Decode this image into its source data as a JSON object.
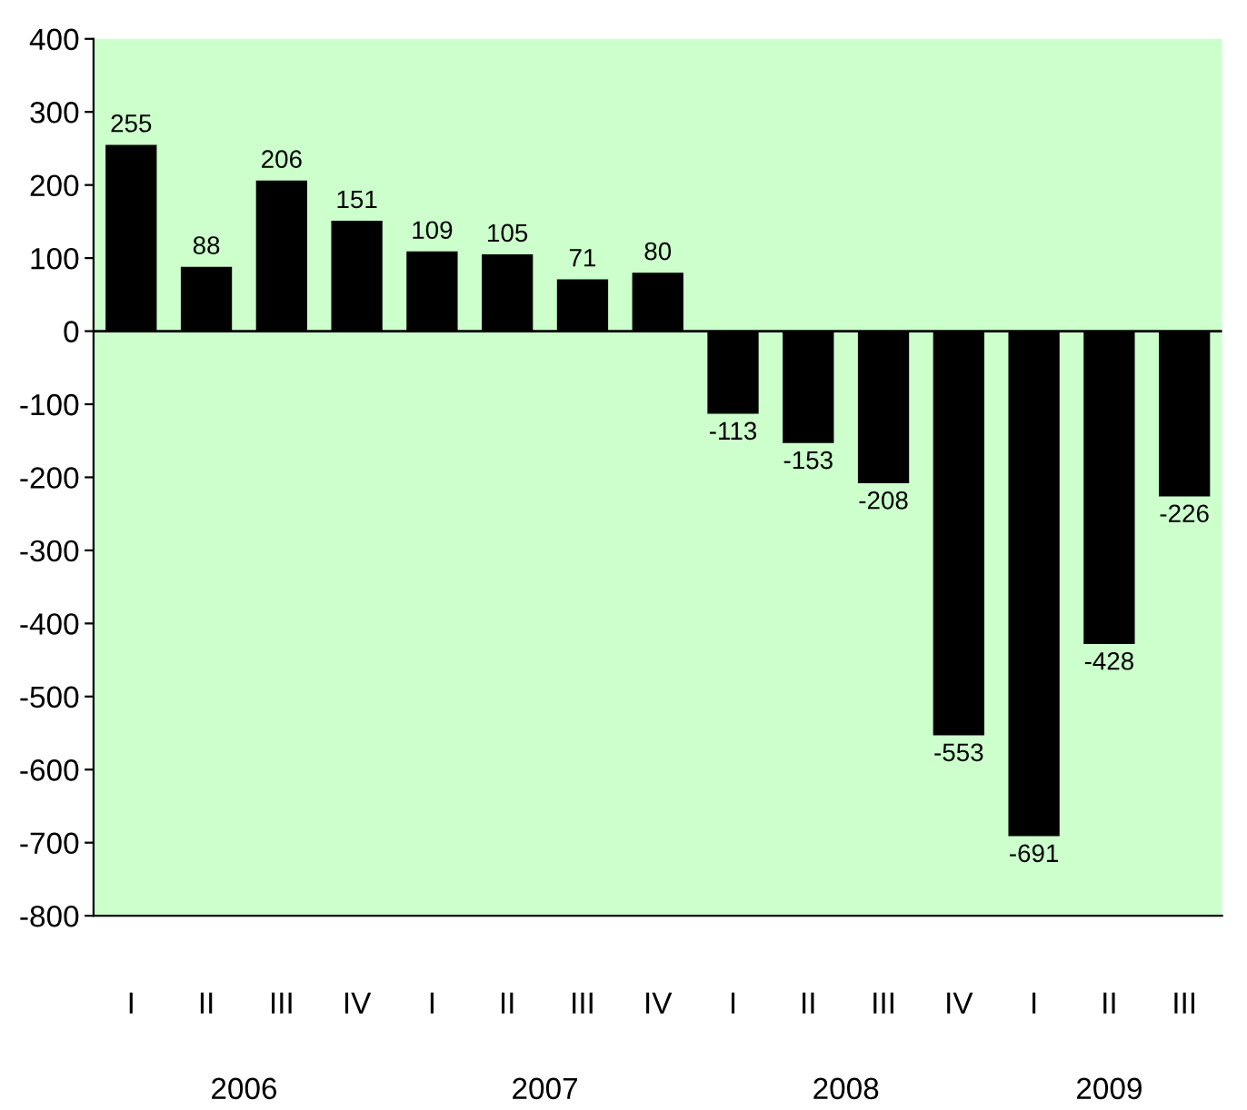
{
  "chart_data": {
    "type": "bar",
    "categories": [
      "I",
      "II",
      "III",
      "IV",
      "I",
      "II",
      "III",
      "IV",
      "I",
      "II",
      "III",
      "IV",
      "I",
      "II",
      "III"
    ],
    "values": [
      255,
      88,
      206,
      151,
      109,
      105,
      71,
      80,
      -113,
      -153,
      -208,
      -553,
      -691,
      -428,
      -226
    ],
    "color": "#000000",
    "data_labels": true,
    "ylim": [
      -800,
      400
    ],
    "yticks": [
      -800,
      -700,
      -600,
      -500,
      -400,
      -300,
      -200,
      -100,
      0,
      100,
      200,
      300,
      400
    ],
    "grid": false,
    "ref_lines": [
      {
        "axis": "y",
        "value": 0,
        "color": "#000000"
      }
    ],
    "annotations": [
      "2006",
      "2007",
      "2008",
      "2009"
    ]
  }
}
